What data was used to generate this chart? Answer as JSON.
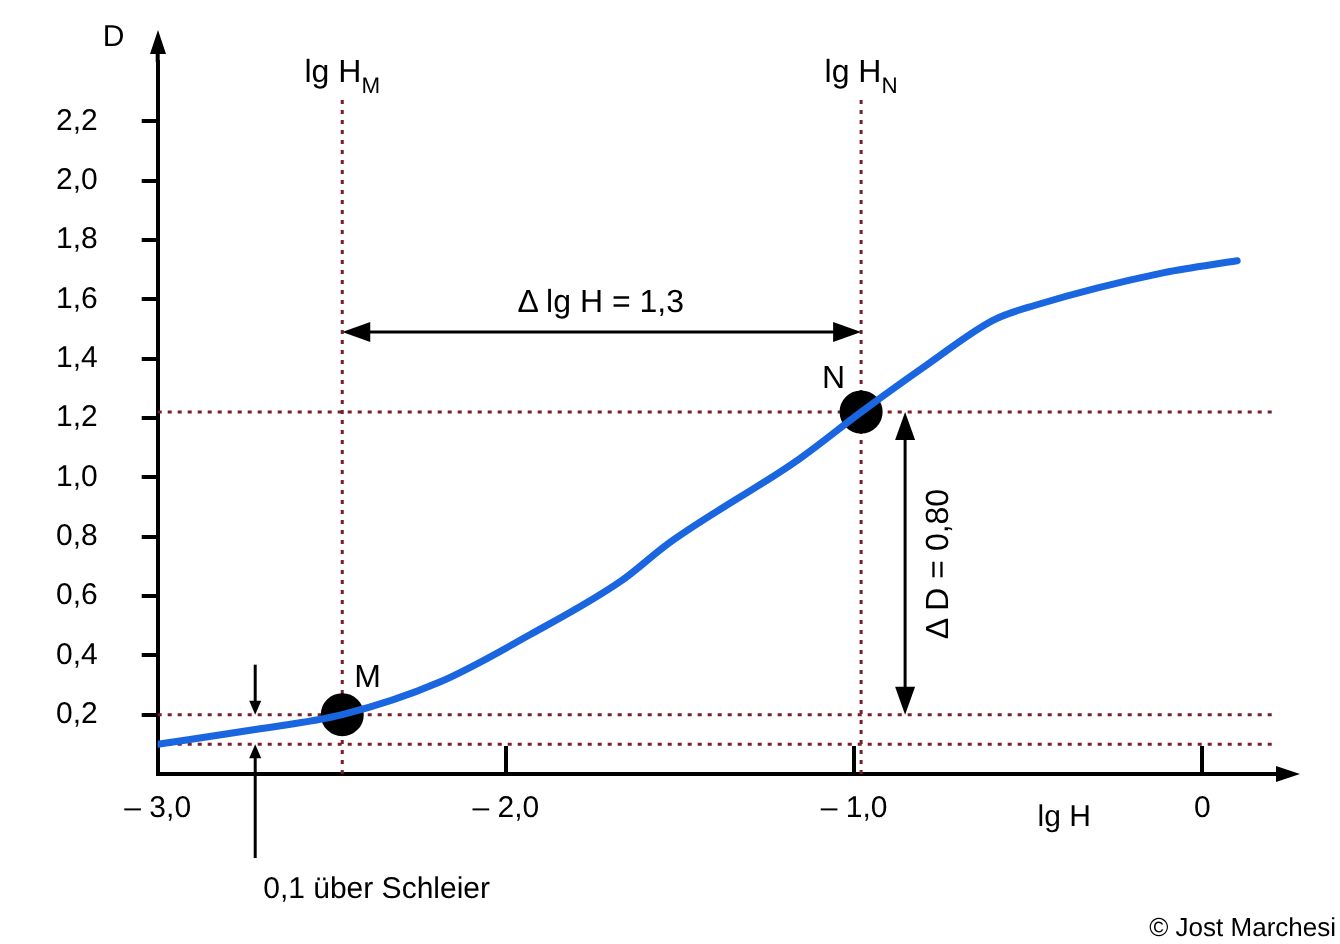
{
  "chart_data": {
    "type": "line",
    "xlabel": "lg H",
    "ylabel": "D",
    "xlim": [
      -3.0,
      0.2
    ],
    "xticks": [
      {
        "value": -3,
        "label": "– 3,0"
      },
      {
        "value": -2,
        "label": "– 2,0"
      },
      {
        "value": -1,
        "label": "– 1,0"
      },
      0
    ],
    "ylim": [
      0,
      2.4
    ],
    "yticks": [
      {
        "value": 0.2,
        "label": "0,2"
      },
      {
        "value": 0.4,
        "label": "0,4"
      },
      {
        "value": 0.6,
        "label": "0,6"
      },
      {
        "value": 0.8,
        "label": "0,8"
      },
      {
        "value": 1.0,
        "label": "1,0"
      },
      {
        "value": 1.2,
        "label": "1,2"
      },
      {
        "value": 1.4,
        "label": "1,4"
      },
      {
        "value": 1.6,
        "label": "1,6"
      },
      {
        "value": 1.8,
        "label": "1,8"
      },
      {
        "value": 2.0,
        "label": "2,0"
      },
      {
        "value": 2.2,
        "label": "2,2"
      }
    ],
    "series": [
      {
        "type": "line",
        "color": "#1a66e0",
        "marker": "none",
        "x": [
          -3.0,
          -2.72,
          -2.47,
          -2.19,
          -1.93,
          -1.67,
          -1.53,
          -1.16,
          -0.98,
          -0.79,
          -0.6,
          -0.48,
          -0.11,
          0.1
        ],
        "values": [
          0.1,
          0.15,
          0.2,
          0.31,
          0.47,
          0.65,
          0.78,
          1.06,
          1.22,
          1.38,
          1.53,
          1.58,
          1.69,
          1.73
        ]
      },
      {
        "type": "scatter",
        "color": "#000000",
        "marker": "circle",
        "x": [
          -2.47,
          -0.98
        ],
        "values": [
          0.2,
          1.22
        ]
      }
    ],
    "ref_lines": [
      {
        "axis": "x",
        "value": -2.47,
        "label": "lg H$_{M}$",
        "color": "#7a1f2b",
        "line_style": "dotted"
      },
      {
        "axis": "x",
        "value": -0.98,
        "label": "lg H$_{N}$",
        "color": "#7a1f2b",
        "line_style": "dotted"
      },
      {
        "axis": "y",
        "value": 0.1,
        "color": "#7a1f2b",
        "line_style": "dotted"
      },
      {
        "axis": "y",
        "value": 0.2,
        "color": "#7a1f2b",
        "line_style": "dotted"
      },
      {
        "axis": "y",
        "value": 1.22,
        "color": "#7a1f2b",
        "line_style": "dotted"
      }
    ],
    "annotations": [
      {
        "text": "M",
        "x": -2.47,
        "y": 0.2
      },
      {
        "text": "N",
        "x": -0.98,
        "y": 1.22
      },
      "Δ lg H = 1,3",
      "Δ D = 0,80",
      {
        "text": "0,1 über Schleier",
        "x": -2.72,
        "y": 0.1
      },
      "© Jost Marchesi"
    ],
    "legend": false
  }
}
